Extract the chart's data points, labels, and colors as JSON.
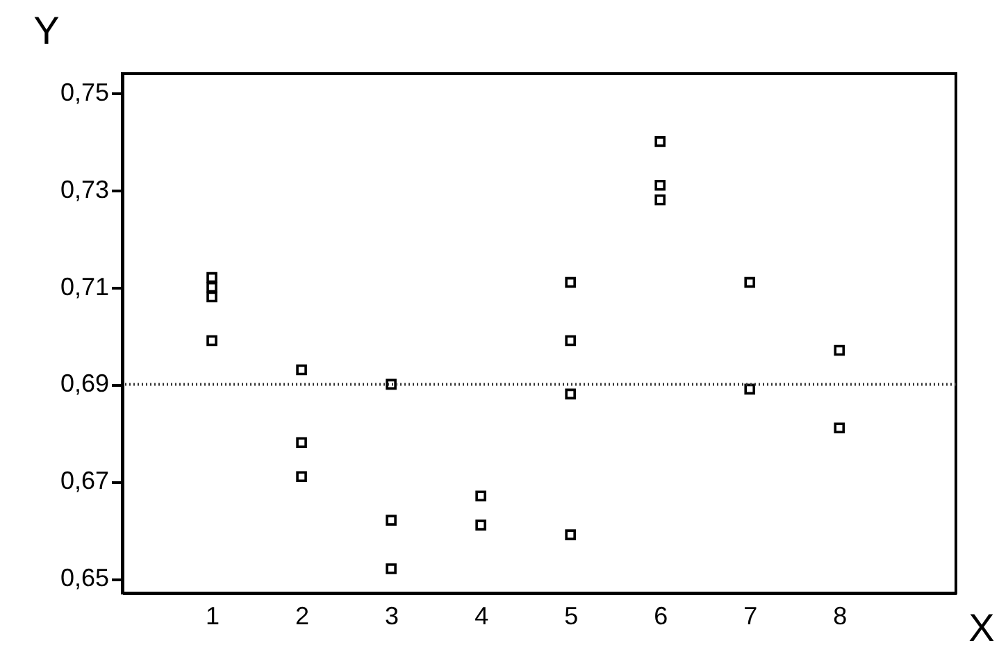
{
  "chart_data": {
    "type": "scatter",
    "xlabel": "X",
    "ylabel": "Y",
    "x": [
      1,
      1,
      1,
      1,
      2,
      2,
      2,
      3,
      3,
      3,
      4,
      4,
      5,
      5,
      5,
      5,
      6,
      6,
      6,
      7,
      7,
      8,
      8
    ],
    "series": [
      {
        "color": "#000000",
        "values": [
          0.712,
          0.71,
          0.708,
          0.699,
          0.693,
          0.678,
          0.671,
          0.69,
          0.662,
          0.652,
          0.667,
          0.661,
          0.711,
          0.699,
          0.688,
          0.659,
          0.74,
          0.731,
          0.728,
          0.711,
          0.689,
          0.697,
          0.681
        ]
      }
    ],
    "xlim": [
      0,
      9.3
    ],
    "xticks": [
      1,
      2,
      3,
      4,
      5,
      6,
      7,
      8
    ],
    "ylim": [
      0.647,
      0.754
    ],
    "yticks": [
      {
        "value": 0.65,
        "label": "0,65"
      },
      {
        "value": 0.67,
        "label": "0,67"
      },
      {
        "value": 0.69,
        "label": "0,69"
      },
      {
        "value": 0.71,
        "label": "0,71"
      },
      {
        "value": 0.73,
        "label": "0,73"
      },
      {
        "value": 0.75,
        "label": "0,75"
      }
    ],
    "ref_lines": [
      {
        "axis": "y",
        "value": 0.69,
        "color": "#333333",
        "line_style": "dotted"
      }
    ],
    "marker": "square",
    "grid": false,
    "legend": false
  }
}
